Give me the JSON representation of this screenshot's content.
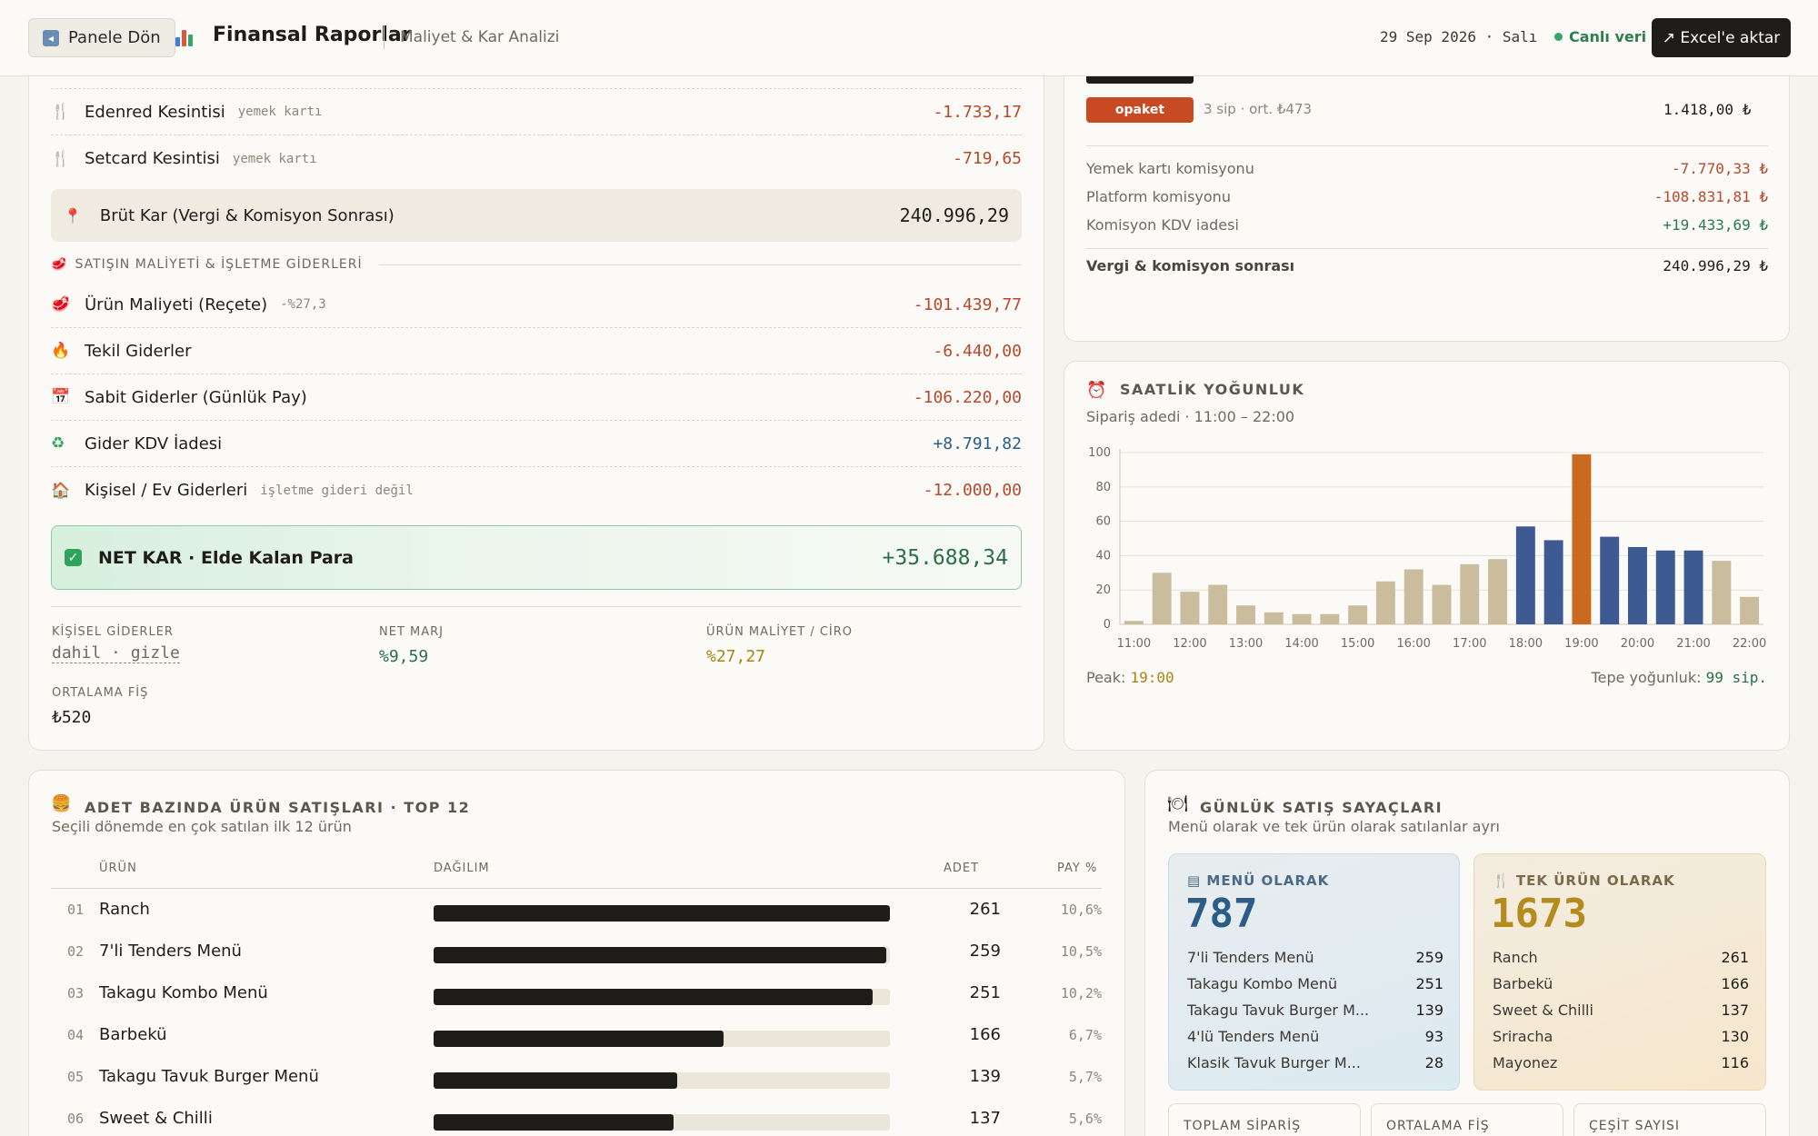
{
  "header": {
    "back_label": "Panele Dön",
    "title": "Finansal Raporlar",
    "subtitle": "Maliyet & Kar Analizi",
    "date": "29 Sep 2026 · Salı",
    "live_label": "Canlı veri",
    "export_label": "↗ Excel'e aktar"
  },
  "pnl": {
    "deductions": [
      {
        "icon": "fork-icon",
        "label": "Edenred Kesintisi",
        "tag": "yemek kartı",
        "value": "-1.733,17"
      },
      {
        "icon": "fork-icon",
        "label": "Setcard Kesintisi",
        "tag": "yemek kartı",
        "value": "-719,65"
      }
    ],
    "brut_label": "Brüt Kar (Vergi & Komisyon Sonrası)",
    "brut_value": "240.996,29",
    "section_label": "SATIŞIN MALİYETİ & İŞLETME GİDERLERİ",
    "expenses": [
      {
        "icon": "meat-icon",
        "label": "Ürün Maliyeti (Reçete)",
        "tag": "-%27,3",
        "value": "-101.439,77",
        "kind": "neg"
      },
      {
        "icon": "fire-icon",
        "label": "Tekil Giderler",
        "tag": "",
        "value": "-6.440,00",
        "kind": "neg"
      },
      {
        "icon": "calendar-icon",
        "label": "Sabit Giderler (Günlük Pay)",
        "tag": "",
        "value": "-106.220,00",
        "kind": "neg"
      },
      {
        "icon": "recycle-icon",
        "label": "Gider KDV İadesi",
        "tag": "",
        "value": "+8.791,82",
        "kind": "pos"
      },
      {
        "icon": "house-icon",
        "label": "Kişisel / Ev Giderleri",
        "tag": "işletme gideri değil",
        "value": "-12.000,00",
        "kind": "neg"
      }
    ],
    "net_label": "NET KAR · Elde Kalan Para",
    "net_value": "+35.688,34",
    "stats": {
      "personal_label": "KİŞİSEL GİDERLER",
      "personal_value": "dahil · gizle",
      "margin_label": "NET MARJ",
      "margin_value": "%9,59",
      "cost_label": "ÜRÜN MALİYET / CİRO",
      "cost_value": "%27,27",
      "avg_label": "ORTALAMA FİŞ",
      "avg_value": "₺520"
    }
  },
  "platform": {
    "name": "opaket",
    "meta": "3 sip · ort. ₺473",
    "amount": "1.418,00 ₺",
    "lines": [
      {
        "label": "Yemek kartı komisyonu",
        "value": "-7.770,33 ₺",
        "kind": "neg"
      },
      {
        "label": "Platform komisyonu",
        "value": "-108.831,81 ₺",
        "kind": "neg"
      },
      {
        "label": "Komisyon KDV iadesi",
        "value": "+19.433,69 ₺",
        "kind": "green"
      }
    ],
    "total_label": "Vergi & komisyon sonrası",
    "total_value": "240.996,29 ₺"
  },
  "hourly": {
    "title": "SAATLİK YOĞUNLUK",
    "subtitle": "Sipariş adedi · 11:00 – 22:00",
    "peak_label": "Peak:",
    "peak_value": "19:00",
    "top_label": "Tepe yoğunluk:",
    "top_value": "99 sip."
  },
  "chart_data": {
    "type": "bar",
    "title": "SAATLİK YOĞUNLUK",
    "ylim": [
      0,
      100
    ],
    "yticks": [
      0,
      20,
      40,
      60,
      80,
      100
    ],
    "xticks": [
      "11:00",
      "12:00",
      "13:00",
      "14:00",
      "15:00",
      "16:00",
      "17:00",
      "18:00",
      "19:00",
      "20:00",
      "21:00",
      "22:00"
    ],
    "x": [
      "11:00",
      "11:30",
      "12:00",
      "12:30",
      "13:00",
      "13:30",
      "14:00",
      "14:30",
      "15:00",
      "15:30",
      "16:00",
      "16:30",
      "17:00",
      "17:30",
      "18:00",
      "18:30",
      "19:00",
      "19:30",
      "20:00",
      "20:30",
      "21:00",
      "21:30",
      "22:00"
    ],
    "values": [
      2,
      30,
      19,
      23,
      11,
      7,
      6,
      6,
      11,
      25,
      32,
      23,
      35,
      38,
      57,
      49,
      99,
      51,
      45,
      43,
      43,
      37,
      16
    ],
    "colors": {
      "normal": "#c9bd9e",
      "busy": "#3d5a93",
      "peak": "#c96a1f"
    },
    "kinds": [
      "n",
      "n",
      "n",
      "n",
      "n",
      "n",
      "n",
      "n",
      "n",
      "n",
      "n",
      "n",
      "n",
      "n",
      "b",
      "b",
      "p",
      "b",
      "b",
      "b",
      "b",
      "n",
      "n"
    ],
    "grid": true
  },
  "products": {
    "title": "ADET BAZINDA ÜRÜN SATIŞLARI · TOP 12",
    "subtitle": "Seçili dönemde en çok satılan ilk 12 ürün",
    "headers": {
      "product": "ÜRÜN",
      "dist": "DAĞILIM",
      "qty": "ADET",
      "share": "PAY %"
    },
    "rows": [
      {
        "no": "01",
        "name": "Ranch",
        "qty": "261",
        "share": "10,6%",
        "fraction": 1.0
      },
      {
        "no": "02",
        "name": "7'li Tenders Menü",
        "qty": "259",
        "share": "10,5%",
        "fraction": 0.992
      },
      {
        "no": "03",
        "name": "Takagu Kombo Menü",
        "qty": "251",
        "share": "10,2%",
        "fraction": 0.962
      },
      {
        "no": "04",
        "name": "Barbekü",
        "qty": "166",
        "share": "6,7%",
        "fraction": 0.636
      },
      {
        "no": "05",
        "name": "Takagu Tavuk Burger Menü",
        "qty": "139",
        "share": "5,7%",
        "fraction": 0.533
      },
      {
        "no": "06",
        "name": "Sweet & Chilli",
        "qty": "137",
        "share": "5,6%",
        "fraction": 0.525
      }
    ]
  },
  "counters": {
    "title": "GÜNLÜK SATIŞ SAYAÇLARI",
    "subtitle": "Menü olarak ve tek ürün olarak satılanlar ayrı",
    "menu": {
      "label": "MENÜ OLARAK",
      "total": "787",
      "items": [
        {
          "name": "7'li Tenders Menü",
          "count": "259"
        },
        {
          "name": "Takagu Kombo Menü",
          "count": "251"
        },
        {
          "name": "Takagu Tavuk Burger M...",
          "count": "139"
        },
        {
          "name": "4'lü Tenders Menü",
          "count": "93"
        },
        {
          "name": "Klasik Tavuk Burger M...",
          "count": "28"
        }
      ]
    },
    "single": {
      "label": "TEK ÜRÜN OLARAK",
      "total": "1673",
      "items": [
        {
          "name": "Ranch",
          "count": "261"
        },
        {
          "name": "Barbekü",
          "count": "166"
        },
        {
          "name": "Sweet & Chilli",
          "count": "137"
        },
        {
          "name": "Sriracha",
          "count": "130"
        },
        {
          "name": "Mayonez",
          "count": "116"
        }
      ]
    },
    "minis": [
      "TOPLAM SİPARİŞ",
      "ORTALAMA FİŞ",
      "ÇEŞİT SAYISI"
    ]
  }
}
